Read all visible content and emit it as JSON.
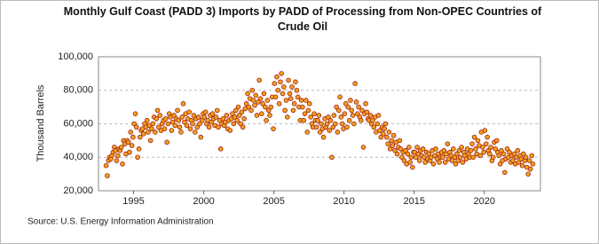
{
  "chart_data": {
    "type": "scatter",
    "title": "Monthly Gulf Coast (PADD 3) Imports by PADD of Processing from Non-OPEC Countries of Crude Oil",
    "ylabel": "Thousand Barrels",
    "source": "Source: U.S. Energy Information Administration",
    "color": "#f0a020",
    "edgecolor": "#a02010",
    "xlim": [
      1992.5,
      2024
    ],
    "xticks": [
      1995,
      2000,
      2005,
      2010,
      2015,
      2020
    ],
    "ylim": [
      20000,
      100000
    ],
    "yticks": [
      {
        "value": 20000,
        "label": "20,000"
      },
      {
        "value": 40000,
        "label": "40,000"
      },
      {
        "value": 60000,
        "label": "60,000"
      },
      {
        "value": 80000,
        "label": "80,000"
      },
      {
        "value": 100000,
        "label": "100,000"
      }
    ],
    "grid": true,
    "x": [
      1993.04,
      1993.13,
      1993.21,
      1993.29,
      1993.38,
      1993.46,
      1993.54,
      1993.63,
      1993.71,
      1993.79,
      1993.88,
      1993.96,
      1994.04,
      1994.13,
      1994.21,
      1994.29,
      1994.38,
      1994.46,
      1994.54,
      1994.63,
      1994.71,
      1994.79,
      1994.88,
      1994.96,
      1995.04,
      1995.13,
      1995.21,
      1995.29,
      1995.38,
      1995.46,
      1995.54,
      1995.63,
      1995.71,
      1995.79,
      1995.88,
      1995.96,
      1996.04,
      1996.13,
      1996.21,
      1996.29,
      1996.38,
      1996.46,
      1996.54,
      1996.63,
      1996.71,
      1996.79,
      1996.88,
      1996.96,
      1997.04,
      1997.13,
      1997.21,
      1997.29,
      1997.38,
      1997.46,
      1997.54,
      1997.63,
      1997.71,
      1997.79,
      1997.88,
      1997.96,
      1998.04,
      1998.13,
      1998.21,
      1998.29,
      1998.38,
      1998.46,
      1998.54,
      1998.63,
      1998.71,
      1998.79,
      1998.88,
      1998.96,
      1999.04,
      1999.13,
      1999.21,
      1999.29,
      1999.38,
      1999.46,
      1999.54,
      1999.63,
      1999.71,
      1999.79,
      1999.88,
      1999.96,
      2000.04,
      2000.13,
      2000.21,
      2000.29,
      2000.38,
      2000.46,
      2000.54,
      2000.63,
      2000.71,
      2000.79,
      2000.88,
      2000.96,
      2001.04,
      2001.13,
      2001.21,
      2001.29,
      2001.38,
      2001.46,
      2001.54,
      2001.63,
      2001.71,
      2001.79,
      2001.88,
      2001.96,
      2002.04,
      2002.13,
      2002.21,
      2002.29,
      2002.38,
      2002.46,
      2002.54,
      2002.63,
      2002.71,
      2002.79,
      2002.88,
      2002.96,
      2003.04,
      2003.13,
      2003.21,
      2003.29,
      2003.38,
      2003.46,
      2003.54,
      2003.63,
      2003.71,
      2003.79,
      2003.88,
      2003.96,
      2004.04,
      2004.13,
      2004.21,
      2004.29,
      2004.38,
      2004.46,
      2004.54,
      2004.63,
      2004.71,
      2004.79,
      2004.88,
      2004.96,
      2005.04,
      2005.13,
      2005.21,
      2005.29,
      2005.38,
      2005.46,
      2005.54,
      2005.63,
      2005.71,
      2005.79,
      2005.88,
      2005.96,
      2006.04,
      2006.13,
      2006.21,
      2006.29,
      2006.38,
      2006.46,
      2006.54,
      2006.63,
      2006.71,
      2006.79,
      2006.88,
      2006.96,
      2007.04,
      2007.13,
      2007.21,
      2007.29,
      2007.38,
      2007.46,
      2007.54,
      2007.63,
      2007.71,
      2007.79,
      2007.88,
      2007.96,
      2008.04,
      2008.13,
      2008.21,
      2008.29,
      2008.38,
      2008.46,
      2008.54,
      2008.63,
      2008.71,
      2008.79,
      2008.88,
      2008.96,
      2009.04,
      2009.13,
      2009.21,
      2009.29,
      2009.38,
      2009.46,
      2009.54,
      2009.63,
      2009.71,
      2009.79,
      2009.88,
      2009.96,
      2010.04,
      2010.13,
      2010.21,
      2010.29,
      2010.38,
      2010.46,
      2010.54,
      2010.63,
      2010.71,
      2010.79,
      2010.88,
      2010.96,
      2011.04,
      2011.13,
      2011.21,
      2011.29,
      2011.38,
      2011.46,
      2011.54,
      2011.63,
      2011.71,
      2011.79,
      2011.88,
      2011.96,
      2012.04,
      2012.13,
      2012.21,
      2012.29,
      2012.38,
      2012.46,
      2012.54,
      2012.63,
      2012.71,
      2012.79,
      2012.88,
      2012.96,
      2013.04,
      2013.13,
      2013.21,
      2013.29,
      2013.38,
      2013.46,
      2013.54,
      2013.63,
      2013.71,
      2013.79,
      2013.88,
      2013.96,
      2014.04,
      2014.13,
      2014.21,
      2014.29,
      2014.38,
      2014.46,
      2014.54,
      2014.63,
      2014.71,
      2014.79,
      2014.88,
      2014.96,
      2015.04,
      2015.13,
      2015.21,
      2015.29,
      2015.38,
      2015.46,
      2015.54,
      2015.63,
      2015.71,
      2015.79,
      2015.88,
      2015.96,
      2016.04,
      2016.13,
      2016.21,
      2016.29,
      2016.38,
      2016.46,
      2016.54,
      2016.63,
      2016.71,
      2016.79,
      2016.88,
      2016.96,
      2017.04,
      2017.13,
      2017.21,
      2017.29,
      2017.38,
      2017.46,
      2017.54,
      2017.63,
      2017.71,
      2017.79,
      2017.88,
      2017.96,
      2018.04,
      2018.13,
      2018.21,
      2018.29,
      2018.38,
      2018.46,
      2018.54,
      2018.63,
      2018.71,
      2018.79,
      2018.88,
      2018.96,
      2019.04,
      2019.13,
      2019.21,
      2019.29,
      2019.38,
      2019.46,
      2019.54,
      2019.63,
      2019.71,
      2019.79,
      2019.88,
      2019.96,
      2020.04,
      2020.13,
      2020.21,
      2020.29,
      2020.38,
      2020.46,
      2020.54,
      2020.63,
      2020.71,
      2020.79,
      2020.88,
      2020.96,
      2021.04,
      2021.13,
      2021.21,
      2021.29,
      2021.38,
      2021.46,
      2021.54,
      2021.63,
      2021.71,
      2021.79,
      2021.88,
      2021.96,
      2022.04,
      2022.13,
      2022.21,
      2022.29,
      2022.38,
      2022.46,
      2022.54,
      2022.63,
      2022.71,
      2022.79,
      2022.88,
      2022.96,
      2023.04,
      2023.13,
      2023.21,
      2023.29,
      2023.38,
      2023.46
    ],
    "values": [
      35000,
      29000,
      38000,
      40000,
      39000,
      41000,
      43000,
      46000,
      44000,
      38000,
      41000,
      45000,
      44000,
      46000,
      36000,
      50000,
      48000,
      42000,
      50000,
      49000,
      43000,
      55000,
      47000,
      52000,
      60000,
      66000,
      58000,
      40000,
      45000,
      52000,
      56000,
      57000,
      54000,
      60000,
      58000,
      62000,
      55000,
      59000,
      50000,
      57000,
      60000,
      64000,
      55000,
      63000,
      68000,
      58000,
      65000,
      56000,
      60000,
      62000,
      57000,
      63000,
      49000,
      60000,
      66000,
      64000,
      56000,
      61000,
      65000,
      59000,
      63000,
      68000,
      62000,
      58000,
      55000,
      64000,
      72000,
      61000,
      66000,
      59000,
      63000,
      67000,
      57000,
      62000,
      60000,
      65000,
      55000,
      63000,
      58000,
      64000,
      60000,
      52000,
      62000,
      66000,
      64000,
      67000,
      60000,
      62000,
      58000,
      65000,
      61000,
      66000,
      63000,
      59000,
      64000,
      68000,
      58000,
      62000,
      45000,
      60000,
      63000,
      59000,
      61000,
      65000,
      57000,
      62000,
      56000,
      63000,
      66000,
      60000,
      64000,
      68000,
      62000,
      70000,
      65000,
      60000,
      67000,
      58000,
      63000,
      69000,
      72000,
      78000,
      70000,
      75000,
      68000,
      80000,
      74000,
      71000,
      77000,
      65000,
      73000,
      86000,
      75000,
      66000,
      72000,
      78000,
      70000,
      62000,
      74000,
      68000,
      65000,
      70000,
      76000,
      57000,
      84000,
      76000,
      88000,
      80000,
      72000,
      85000,
      90000,
      78000,
      82000,
      68000,
      74000,
      64000,
      86000,
      78000,
      75000,
      82000,
      68000,
      72000,
      85000,
      80000,
      76000,
      70000,
      62000,
      74000,
      70000,
      62000,
      66000,
      74000,
      55000,
      68000,
      72000,
      64000,
      60000,
      58000,
      66000,
      62000,
      58000,
      62000,
      65000,
      55000,
      60000,
      57000,
      52000,
      63000,
      58000,
      60000,
      64000,
      56000,
      62000,
      40000,
      58000,
      65000,
      60000,
      70000,
      55000,
      68000,
      76000,
      64000,
      60000,
      57000,
      66000,
      72000,
      58000,
      70000,
      62000,
      74000,
      68000,
      65000,
      60000,
      84000,
      73000,
      66000,
      70000,
      64000,
      62000,
      68000,
      46000,
      66000,
      72000,
      67000,
      63000,
      62000,
      65000,
      60000,
      62000,
      58000,
      64000,
      55000,
      60000,
      65000,
      56000,
      52000,
      58000,
      54000,
      57000,
      60000,
      52000,
      48000,
      55000,
      45000,
      50000,
      47000,
      53000,
      44000,
      49000,
      42000,
      46000,
      50000,
      45000,
      40000,
      43000,
      38000,
      44000,
      36000,
      42000,
      46000,
      37000,
      40000,
      34000,
      43000,
      43000,
      40000,
      46000,
      42000,
      38000,
      44000,
      41000,
      45000,
      40000,
      37000,
      43000,
      39000,
      42000,
      38000,
      40000,
      44000,
      36000,
      41000,
      45000,
      39000,
      42000,
      37000,
      40000,
      43000,
      40000,
      44000,
      37000,
      42000,
      48000,
      39000,
      43000,
      41000,
      38000,
      45000,
      40000,
      36000,
      42000,
      38000,
      44000,
      40000,
      46000,
      37000,
      43000,
      41000,
      39000,
      45000,
      42000,
      40000,
      44000,
      48000,
      40000,
      52000,
      45000,
      42000,
      50000,
      47000,
      41000,
      55000,
      46000,
      43000,
      56000,
      48000,
      52000,
      44000,
      42000,
      46000,
      38000,
      40000,
      49000,
      45000,
      50000,
      43000,
      41000,
      36000,
      44000,
      38000,
      42000,
      31000,
      39000,
      45000,
      40000,
      43000,
      37000,
      41000,
      38000,
      42000,
      36000,
      40000,
      44000,
      37000,
      41000,
      39000,
      35000,
      42000,
      38000,
      40000,
      34000,
      30000,
      38000,
      33000,
      41000,
      36000
    ]
  }
}
